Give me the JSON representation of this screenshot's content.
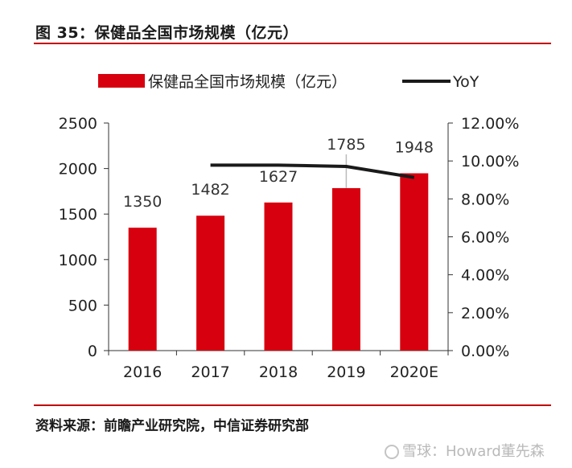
{
  "figure": {
    "title": "图 35：保健品全国市场规模（亿元）",
    "source": "资料来源：前瞻产业研究院，中信证券研究部",
    "watermark": "雪球：Howard董先森"
  },
  "colors": {
    "bar": "#d7000f",
    "line": "#1a1a1a",
    "rule": "#c00000",
    "leader": "#bbbbbb"
  },
  "chart_data": {
    "type": "bar",
    "categories": [
      "2016",
      "2017",
      "2018",
      "2019",
      "2020E"
    ],
    "series": [
      {
        "name": "保健品全国市场规模（亿元）",
        "type": "bar",
        "axis": "left",
        "values": [
          1350,
          1482,
          1627,
          1785,
          1948
        ]
      },
      {
        "name": "YoY",
        "type": "line",
        "axis": "right",
        "values": [
          null,
          9.78,
          9.78,
          9.71,
          9.13
        ]
      }
    ],
    "data_labels": [
      "1350",
      "1482",
      "1627",
      "1785",
      "1948"
    ],
    "ylim_left": [
      0,
      2500
    ],
    "yticks_left": [
      "0",
      "500",
      "1000",
      "1500",
      "2000",
      "2500"
    ],
    "ylim_right": [
      0,
      12
    ],
    "yticks_right": [
      "0.00%",
      "2.00%",
      "4.00%",
      "6.00%",
      "8.00%",
      "10.00%",
      "12.00%"
    ],
    "legend_position": "top",
    "grid": false
  }
}
